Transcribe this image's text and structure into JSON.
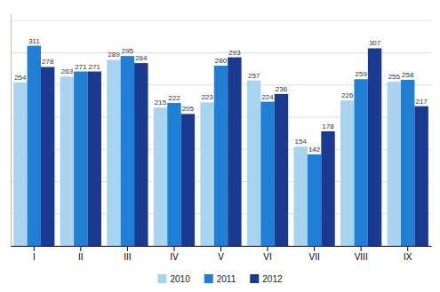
{
  "chart_data": {
    "type": "bar",
    "categories": [
      "I",
      "II",
      "III",
      "IV",
      "V",
      "VI",
      "VII",
      "VIII",
      "IX"
    ],
    "series": [
      {
        "name": "2010",
        "color": "#a8d4f0",
        "values": [
          254,
          263,
          289,
          215,
          223,
          257,
          154,
          226,
          255
        ]
      },
      {
        "name": "2011",
        "color": "#1e7fd4",
        "values": [
          311,
          271,
          295,
          222,
          280,
          224,
          142,
          259,
          258
        ]
      },
      {
        "name": "2012",
        "color": "#1a3a8f",
        "values": [
          278,
          271,
          284,
          205,
          293,
          236,
          178,
          307,
          217
        ]
      }
    ],
    "ylim": [
      0,
      360
    ],
    "yticks": [
      0,
      50,
      100,
      150,
      200,
      250,
      300,
      350
    ],
    "grid": true,
    "tick_labels": "x",
    "data_labels": true,
    "legend": "bottom"
  }
}
